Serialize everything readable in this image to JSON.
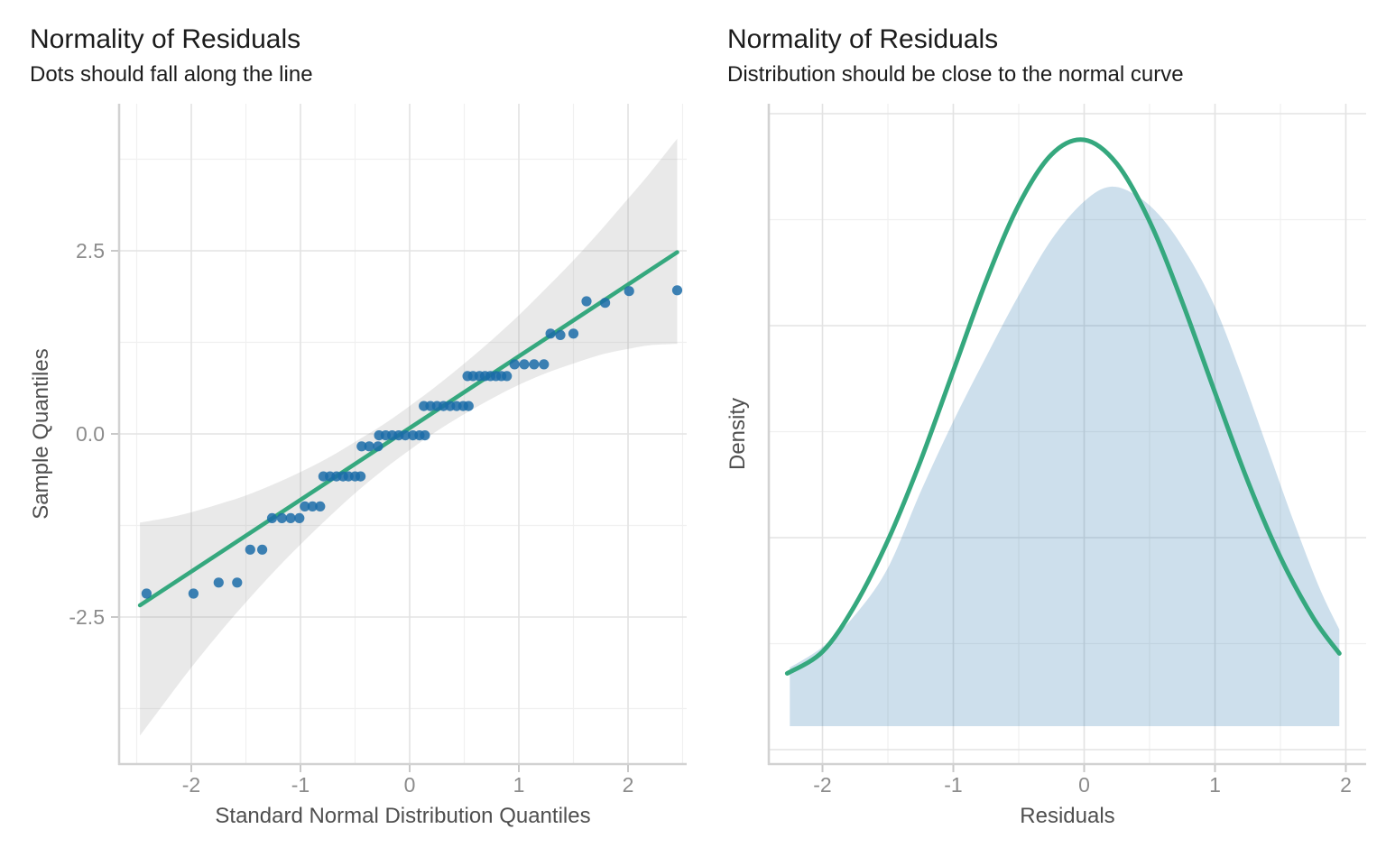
{
  "colors": {
    "green_line": "#35a87e",
    "dot_blue": "#1b6ca8",
    "band_gray": "#999999",
    "grid_major": "#e3e3e3",
    "grid_minor": "#f0f0f0",
    "axis_line": "#d2d2d2",
    "tick_mark": "#c9c9c9",
    "tick_label": "#8c8c8c",
    "axis_title": "#4f4f4f",
    "title_text": "#1c1c1c"
  },
  "chart_data": [
    {
      "type": "scatter",
      "title": "Normality of Residuals",
      "subtitle": "Dots should fall along the line",
      "xlabel": "Standard Normal Distribution Quantiles",
      "ylabel": "Sample Quantiles",
      "xlim": [
        -2.66,
        2.54
      ],
      "ylim": [
        -4.5,
        4.5
      ],
      "grid": true,
      "x_major_ticks": [
        -2,
        -1,
        0,
        1,
        2
      ],
      "x_tick_labels": [
        "-2",
        "-1",
        "0",
        "1",
        "2"
      ],
      "x_minor_ticks": [
        -2.5,
        -1.5,
        -0.5,
        0.5,
        1.5,
        2.5
      ],
      "y_major_ticks": [
        2.5,
        0,
        -2.5
      ],
      "y_tick_labels": [
        "2.5",
        "0.0",
        "-2.5"
      ],
      "y_minor_ticks": [
        3.75,
        1.25,
        -1.25,
        -3.75
      ],
      "fit_line": {
        "x": [
          -2.47,
          2.45
        ],
        "y": [
          -2.34,
          2.48
        ]
      },
      "confidence_band": {
        "x": [
          -2.47,
          -2.2,
          -2.0,
          -1.75,
          -1.5,
          -1.25,
          -1.0,
          -0.75,
          -0.5,
          -0.25,
          0.0,
          0.25,
          0.5,
          0.75,
          1.0,
          1.25,
          1.5,
          1.75,
          2.0,
          2.2,
          2.45
        ],
        "upper": [
          -1.21,
          -1.14,
          -1.07,
          -0.96,
          -0.84,
          -0.69,
          -0.52,
          -0.33,
          -0.11,
          0.12,
          0.38,
          0.66,
          0.96,
          1.28,
          1.62,
          1.99,
          2.37,
          2.78,
          3.21,
          3.56,
          4.03
        ],
        "lower": [
          -4.12,
          -3.58,
          -3.19,
          -2.73,
          -2.3,
          -1.89,
          -1.51,
          -1.15,
          -0.81,
          -0.5,
          -0.22,
          0.04,
          0.27,
          0.48,
          0.67,
          0.83,
          0.96,
          1.08,
          1.16,
          1.21,
          1.23
        ]
      },
      "points": [
        [
          -2.41,
          -2.18
        ],
        [
          -1.98,
          -2.18
        ],
        [
          -1.75,
          -2.03
        ],
        [
          -1.58,
          -2.03
        ],
        [
          -1.46,
          -1.58
        ],
        [
          -1.35,
          -1.58
        ],
        [
          -1.26,
          -1.15
        ],
        [
          -1.17,
          -1.15
        ],
        [
          -1.09,
          -1.15
        ],
        [
          -1.01,
          -1.15
        ],
        [
          -0.96,
          -0.99
        ],
        [
          -0.89,
          -0.99
        ],
        [
          -0.82,
          -0.99
        ],
        [
          -0.79,
          -0.58
        ],
        [
          -0.73,
          -0.58
        ],
        [
          -0.67,
          -0.58
        ],
        [
          -0.61,
          -0.58
        ],
        [
          -0.56,
          -0.58
        ],
        [
          -0.5,
          -0.58
        ],
        [
          -0.45,
          -0.58
        ],
        [
          -0.44,
          -0.17
        ],
        [
          -0.37,
          -0.17
        ],
        [
          -0.29,
          -0.17
        ],
        [
          -0.28,
          -0.02
        ],
        [
          -0.22,
          -0.02
        ],
        [
          -0.16,
          -0.02
        ],
        [
          -0.1,
          -0.02
        ],
        [
          -0.04,
          -0.02
        ],
        [
          0.03,
          -0.02
        ],
        [
          0.09,
          -0.02
        ],
        [
          0.14,
          -0.02
        ],
        [
          0.13,
          0.38
        ],
        [
          0.19,
          0.38
        ],
        [
          0.25,
          0.38
        ],
        [
          0.31,
          0.38
        ],
        [
          0.37,
          0.38
        ],
        [
          0.43,
          0.38
        ],
        [
          0.49,
          0.38
        ],
        [
          0.54,
          0.38
        ],
        [
          0.53,
          0.79
        ],
        [
          0.58,
          0.79
        ],
        [
          0.64,
          0.79
        ],
        [
          0.69,
          0.79
        ],
        [
          0.74,
          0.79
        ],
        [
          0.79,
          0.79
        ],
        [
          0.84,
          0.79
        ],
        [
          0.89,
          0.79
        ],
        [
          0.96,
          0.95
        ],
        [
          1.05,
          0.95
        ],
        [
          1.14,
          0.95
        ],
        [
          1.23,
          0.95
        ],
        [
          1.29,
          1.37
        ],
        [
          1.38,
          1.35
        ],
        [
          1.5,
          1.37
        ],
        [
          1.62,
          1.81
        ],
        [
          1.79,
          1.79
        ],
        [
          2.01,
          1.95
        ],
        [
          2.45,
          1.96
        ]
      ]
    },
    {
      "type": "area",
      "title": "Normality of Residuals",
      "subtitle": "Distribution should be close to the normal curve",
      "xlabel": "Residuals",
      "ylabel": "Density",
      "xlim": [
        -2.41,
        2.16
      ],
      "grid": true,
      "x_major_ticks": [
        -2,
        -1,
        0,
        1,
        2
      ],
      "x_tick_labels": [
        "-2",
        "-1",
        "0",
        "1",
        "2"
      ],
      "x_minor_ticks": [
        -1.5,
        -0.5,
        0.5,
        1.5
      ],
      "density_area": {
        "x": [
          -2.25,
          -2.0,
          -1.75,
          -1.5,
          -1.25,
          -1.0,
          -0.75,
          -0.5,
          -0.25,
          0.0,
          0.2,
          0.4,
          0.6,
          0.8,
          1.0,
          1.2,
          1.4,
          1.6,
          1.8,
          1.95
        ],
        "d": [
          0.1,
          0.135,
          0.19,
          0.27,
          0.4,
          0.52,
          0.63,
          0.735,
          0.83,
          0.895,
          0.92,
          0.905,
          0.865,
          0.8,
          0.715,
          0.6,
          0.475,
          0.35,
          0.235,
          0.165
        ]
      },
      "normal_curve": {
        "x": [
          -2.27,
          -2.0,
          -1.75,
          -1.5,
          -1.25,
          -1.0,
          -0.75,
          -0.5,
          -0.25,
          0.0,
          0.25,
          0.5,
          0.75,
          1.0,
          1.25,
          1.5,
          1.75,
          1.95
        ],
        "d": [
          0.09,
          0.127,
          0.207,
          0.317,
          0.453,
          0.606,
          0.759,
          0.889,
          0.975,
          1.0,
          0.959,
          0.861,
          0.723,
          0.569,
          0.418,
          0.288,
          0.185,
          0.124
        ]
      }
    }
  ]
}
